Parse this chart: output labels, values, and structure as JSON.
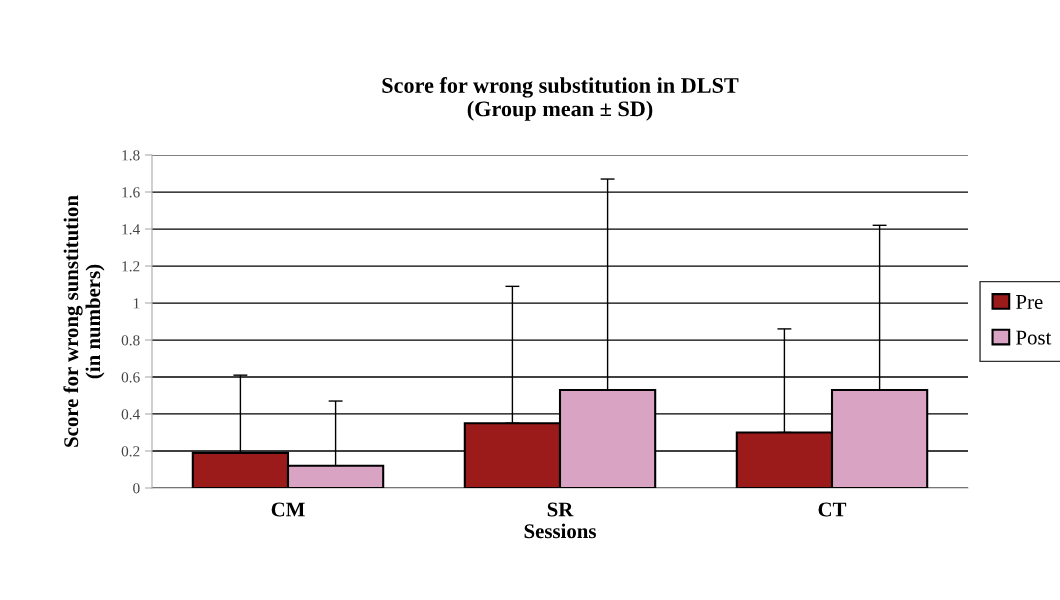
{
  "chart_data": {
    "type": "bar",
    "title": "Score for wrong substitution in DLST\n(Group mean ± SD)",
    "xlabel": "Sessions",
    "ylabel": "Score for wrong sunstitution\n(in numbers)",
    "categories": [
      "CM",
      "SR",
      "CT"
    ],
    "series": [
      {
        "name": "Pre",
        "color": "#9b1b1b",
        "values": [
          0.19,
          0.35,
          0.3
        ],
        "errors": [
          [
            0.19,
            0.61
          ],
          [
            0.35,
            1.09
          ],
          [
            0.3,
            0.86
          ]
        ]
      },
      {
        "name": "Post",
        "color": "#d9a3c3",
        "values": [
          0.12,
          0.53,
          0.53
        ],
        "errors": [
          [
            0.12,
            0.47
          ],
          [
            0.53,
            1.67
          ],
          [
            0.53,
            1.42
          ]
        ]
      }
    ],
    "ylim": [
      0,
      1.8
    ],
    "yticks": [
      0,
      0.2,
      0.4,
      0.6,
      0.8,
      1,
      1.2,
      1.4,
      1.6,
      1.8
    ],
    "grid": "y",
    "legend": "right"
  }
}
